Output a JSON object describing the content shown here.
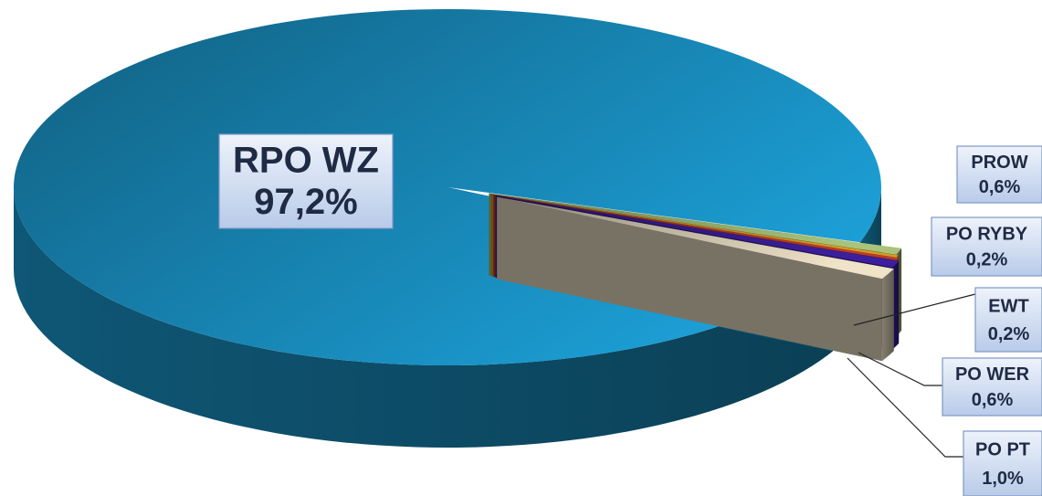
{
  "chart_data": {
    "type": "pie",
    "categories": [
      "RPO WZ",
      "PROW",
      "PO RYBY",
      "EWT",
      "PO WER",
      "PO PT"
    ],
    "values": [
      97.2,
      0.6,
      0.2,
      0.2,
      0.6,
      1.0
    ],
    "value_labels": [
      "97,2%",
      "0,6%",
      "0,2%",
      "0,2%",
      "0,6%",
      "1,0%"
    ],
    "colors": [
      "#1c9fd6",
      "#a9c47a",
      "#d99a1e",
      "#c0392b",
      "#3b1fa0",
      "#efe3c8"
    ]
  }
}
